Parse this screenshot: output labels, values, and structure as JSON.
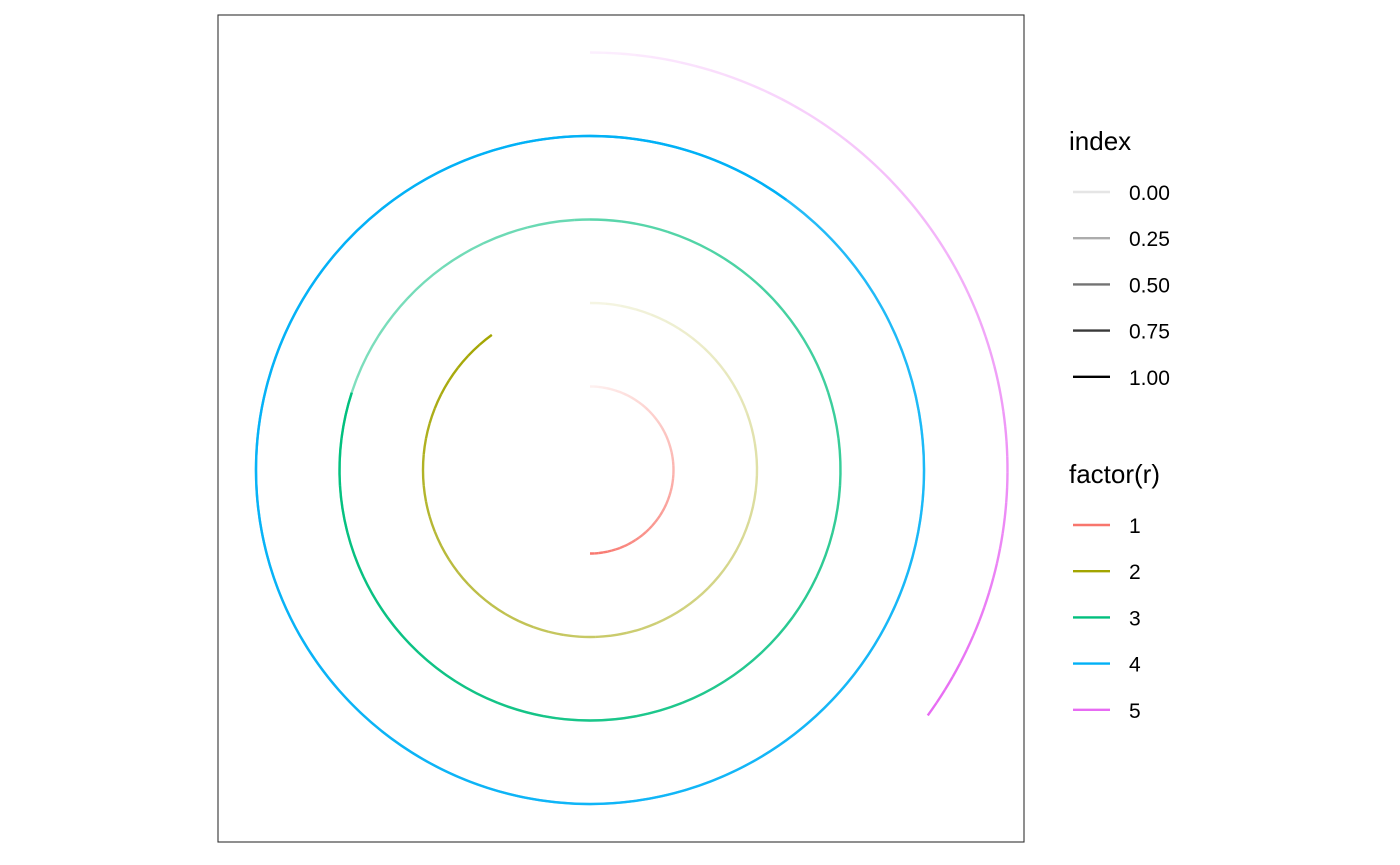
{
  "chart_data": {
    "type": "line",
    "coord": "polar",
    "grid": false,
    "axes_visible": false,
    "panel_border": true,
    "series": [
      {
        "name": "1",
        "r": 1,
        "color": "#F8766D",
        "theta_end": 0.5
      },
      {
        "name": "2",
        "r": 2,
        "color": "#A3A500",
        "theta_end": 0.9
      },
      {
        "name": "3",
        "r": 3,
        "color": "#00BF7D",
        "theta_end": 1.8
      },
      {
        "name": "4",
        "r": 4,
        "color": "#00B0F6",
        "theta_end": 3.1
      },
      {
        "name": "5",
        "r": 5,
        "color": "#E76BF3",
        "theta_end": 0.35
      }
    ],
    "alpha_encoding": "index runs 0 to 1 along each path; line alpha increases with index",
    "legends": [
      {
        "title": "index",
        "position": "right",
        "entries": [
          {
            "label": "0.00",
            "value": 0.0
          },
          {
            "label": "0.25",
            "value": 0.25
          },
          {
            "label": "0.50",
            "value": 0.5
          },
          {
            "label": "0.75",
            "value": 0.75
          },
          {
            "label": "1.00",
            "value": 1.0
          }
        ]
      },
      {
        "title": "factor(r)",
        "position": "right",
        "entries": [
          {
            "label": "1",
            "color": "#F8766D"
          },
          {
            "label": "2",
            "color": "#A3A500"
          },
          {
            "label": "3",
            "color": "#00BF7D"
          },
          {
            "label": "4",
            "color": "#00B0F6"
          },
          {
            "label": "5",
            "color": "#E76BF3"
          }
        ]
      }
    ]
  }
}
